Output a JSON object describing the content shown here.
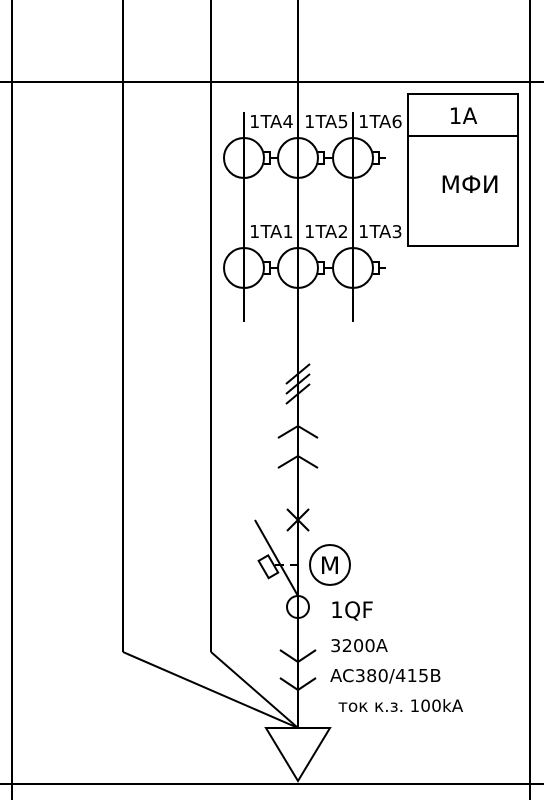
{
  "current_transformers": {
    "top": [
      "1TA4",
      "1TA5",
      "1TA6"
    ],
    "bottom": [
      "1TA1",
      "1TA2",
      "1TA3"
    ]
  },
  "device_box": {
    "id": "1A",
    "name": "МФИ"
  },
  "motor": {
    "symbol": "M"
  },
  "breaker": {
    "id": "1QF",
    "rated_current": "3200A",
    "voltage": "AC380/415B",
    "short_circuit": "ток к.з. 100kA"
  }
}
